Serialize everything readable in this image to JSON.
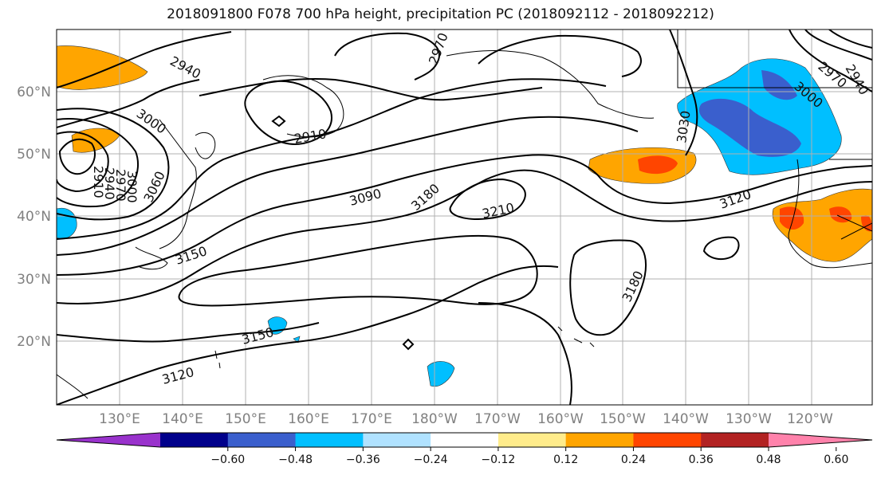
{
  "title": "2018091800 F078 700 hPa height, precipitation PC (2018092112 - 2018092212)",
  "lat_labels": [
    "60°N",
    "50°N",
    "40°N",
    "30°N",
    "20°N"
  ],
  "lon_labels": [
    "130°E",
    "140°E",
    "150°E",
    "160°E",
    "170°E",
    "180°W",
    "170°W",
    "160°W",
    "150°W",
    "140°W",
    "130°W",
    "120°W"
  ],
  "contour_labels": [
    "2940",
    "3000",
    "2910",
    "2940",
    "2970",
    "3000",
    "3060",
    "3150",
    "2910",
    "2970",
    "3090",
    "3180",
    "3210",
    "3030",
    "3120",
    "3000",
    "2970",
    "2940",
    "3150",
    "3120",
    "3180"
  ],
  "colorbar": {
    "colors": [
      "#9932cc",
      "#00008b",
      "#3a5fcd",
      "#00bfff",
      "#b0e2ff",
      "#ffffff",
      "#ffec8b",
      "#ffa500",
      "#ff4500",
      "#b22222",
      "#ff82ab"
    ],
    "tick_labels": [
      "−0.60",
      "−0.48",
      "−0.36",
      "−0.24",
      "−0.12",
      "0.12",
      "0.24",
      "0.36",
      "0.48",
      "0.60"
    ]
  }
}
